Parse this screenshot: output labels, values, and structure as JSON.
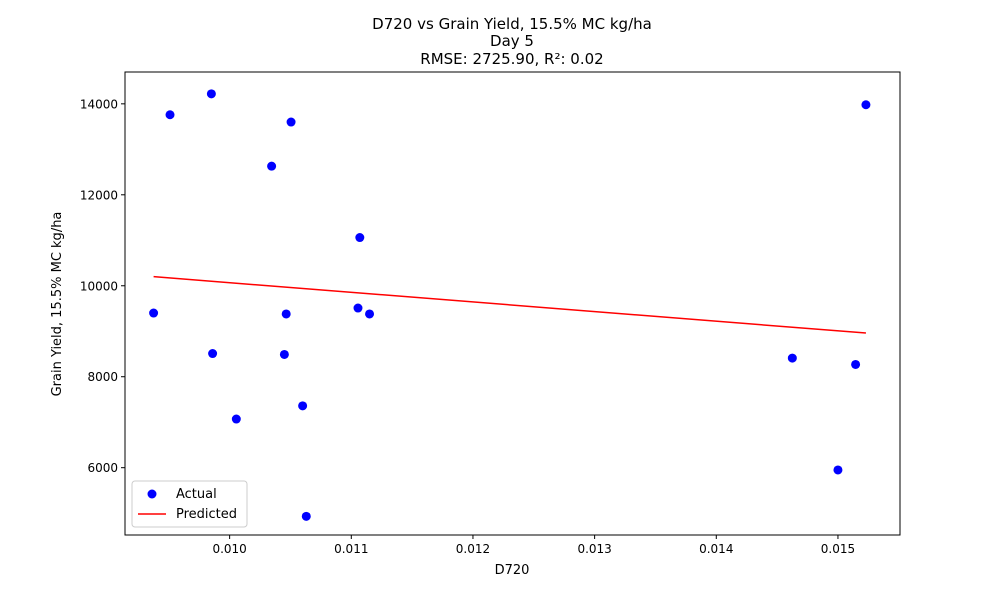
{
  "chart_data": {
    "type": "scatter",
    "title_lines": [
      "D720 vs Grain Yield, 15.5% MC kg/ha",
      "Day 5",
      "RMSE: 2725.90, R²: 0.02"
    ],
    "xlabel": "D720",
    "ylabel": "Grain Yield, 15.5% MC kg/ha",
    "xlim": [
      0.00914,
      0.01551
    ],
    "ylim": [
      4520,
      14700
    ],
    "xticks": [
      0.01,
      0.011,
      0.012,
      0.013,
      0.014,
      0.015
    ],
    "xtick_labels": [
      "0.010",
      "0.011",
      "0.012",
      "0.013",
      "0.014",
      "0.015"
    ],
    "yticks": [
      6000,
      8000,
      10000,
      12000,
      14000
    ],
    "ytick_labels": [
      "6000",
      "8000",
      "10000",
      "12000",
      "14000"
    ],
    "legend_position": "lower-left",
    "series": [
      {
        "name": "Actual",
        "kind": "scatter",
        "color": "#0000ff",
        "points": [
          {
            "x": 0.009375,
            "y": 9400
          },
          {
            "x": 0.00951,
            "y": 13760
          },
          {
            "x": 0.00985,
            "y": 14220
          },
          {
            "x": 0.00986,
            "y": 8510
          },
          {
            "x": 0.010055,
            "y": 7070
          },
          {
            "x": 0.010345,
            "y": 12630
          },
          {
            "x": 0.01045,
            "y": 8490
          },
          {
            "x": 0.010465,
            "y": 9380
          },
          {
            "x": 0.010505,
            "y": 13600
          },
          {
            "x": 0.0106,
            "y": 7360
          },
          {
            "x": 0.01063,
            "y": 4930
          },
          {
            "x": 0.011055,
            "y": 9510
          },
          {
            "x": 0.01107,
            "y": 11060
          },
          {
            "x": 0.01115,
            "y": 9380
          },
          {
            "x": 0.014625,
            "y": 8410
          },
          {
            "x": 0.015,
            "y": 5950
          },
          {
            "x": 0.015145,
            "y": 8270
          },
          {
            "x": 0.01523,
            "y": 13980
          }
        ]
      },
      {
        "name": "Predicted",
        "kind": "line",
        "color": "#ff0000",
        "points": [
          {
            "x": 0.009375,
            "y": 10200
          },
          {
            "x": 0.01523,
            "y": 8960
          }
        ]
      }
    ]
  }
}
